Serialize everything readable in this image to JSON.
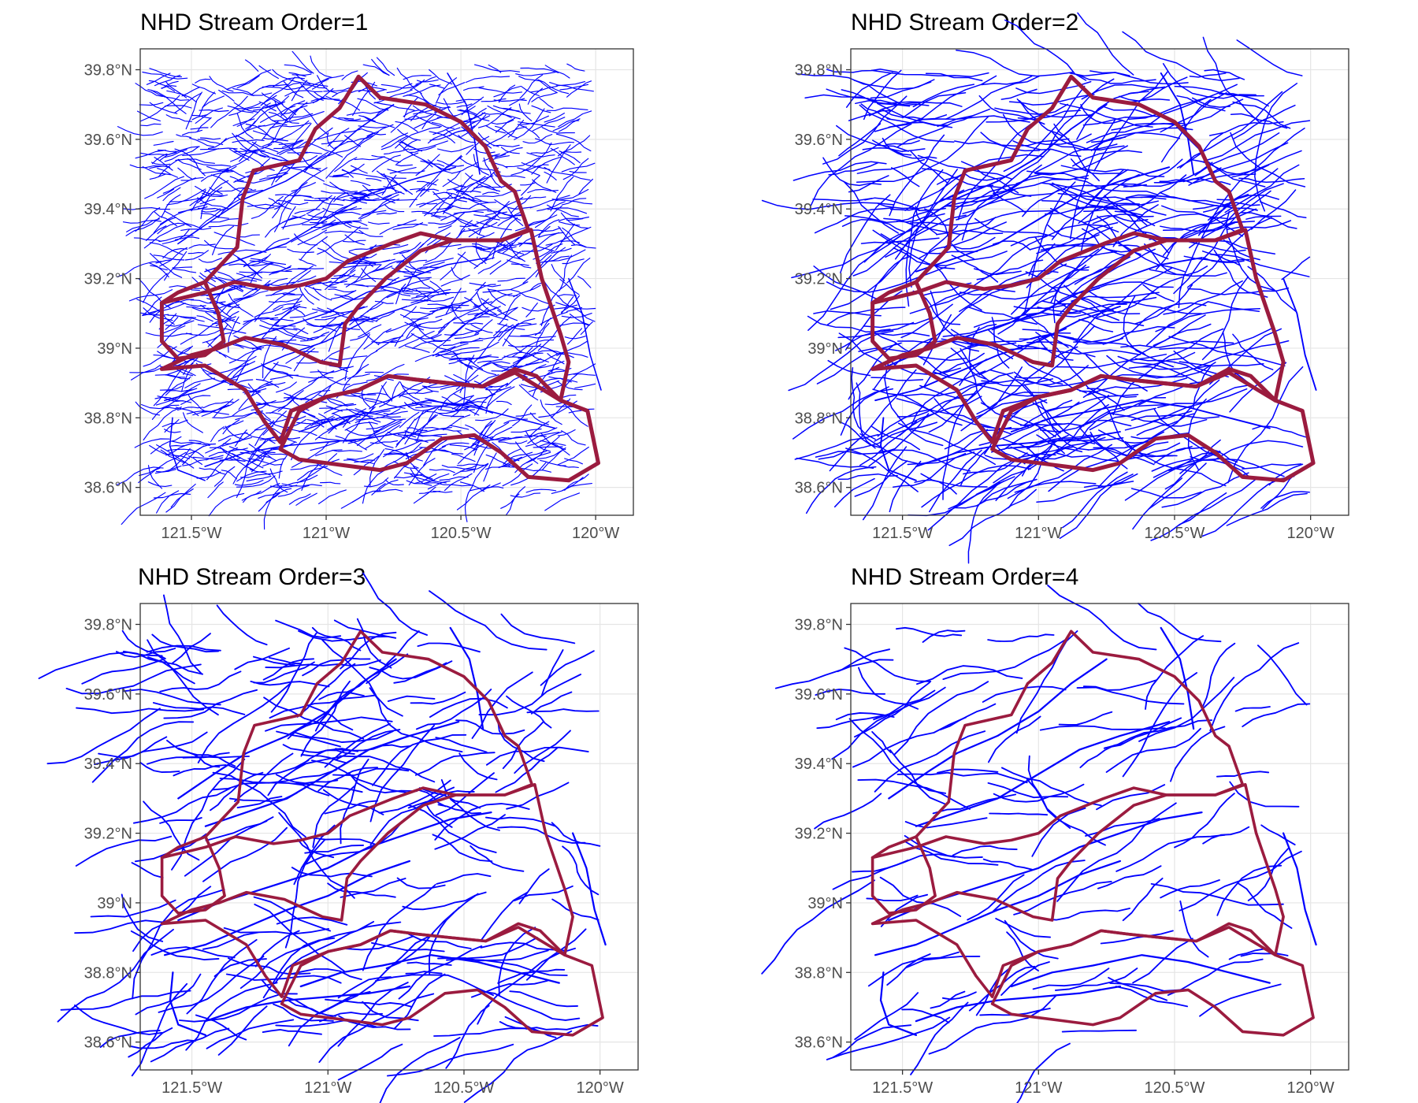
{
  "figure": {
    "panels": [
      {
        "title": "NHD Stream Order=1",
        "stream_order": 1,
        "density": "very high"
      },
      {
        "title": "NHD Stream Order=2",
        "stream_order": 2,
        "density": "high"
      },
      {
        "title": "NHD Stream Order=3",
        "stream_order": 3,
        "density": "medium"
      },
      {
        "title": "NHD Stream Order=4",
        "stream_order": 4,
        "density": "low"
      }
    ],
    "x_axis": {
      "ticks": [
        -121.5,
        -121.0,
        -120.5,
        -120.0
      ],
      "tick_labels": [
        "121.5°W",
        "121°W",
        "120.5°W",
        "120°W"
      ],
      "range": [
        -121.69,
        -119.86
      ]
    },
    "y_axis": {
      "ticks": [
        38.6,
        38.8,
        39.0,
        39.2,
        39.4,
        39.6,
        39.8
      ],
      "tick_labels": [
        "38.6°N",
        "38.8°N",
        "39°N",
        "39.2°N",
        "39.4°N",
        "39.6°N",
        "39.8°N"
      ],
      "range": [
        38.52,
        39.86
      ]
    },
    "grid": true,
    "colors": {
      "streams": "#0000ff",
      "basin_outline": "#9b1b3f",
      "grid": "#e5e5e5",
      "frame": "#333333"
    }
  }
}
